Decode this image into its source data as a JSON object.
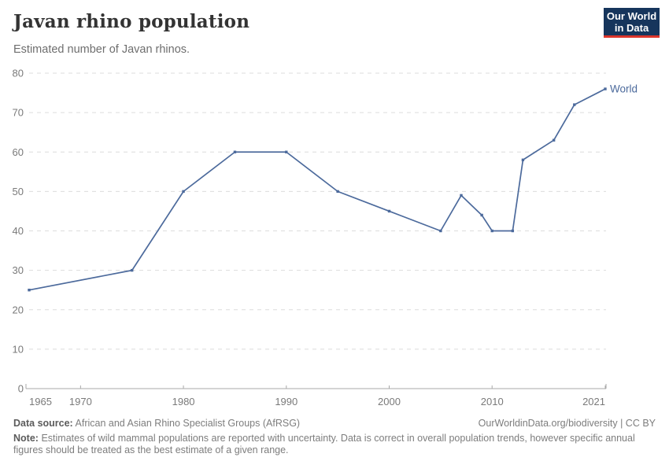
{
  "header": {
    "title": "Javan rhino population",
    "subtitle": "Estimated number of Javan rhinos.",
    "logo": {
      "line1": "Our World",
      "line2": "in Data"
    }
  },
  "chart_data": {
    "type": "line",
    "title": "Javan rhino population",
    "subtitle": "Estimated number of Javan rhinos.",
    "xlabel": "",
    "ylabel": "",
    "xlim": [
      1965,
      2021
    ],
    "ylim": [
      0,
      80
    ],
    "grid": "horizontal-dashed",
    "legend_position": "end-of-line",
    "y_ticks": [
      0,
      10,
      20,
      30,
      40,
      50,
      60,
      70,
      80
    ],
    "x_ticks": [
      {
        "year": 1965,
        "label": "1965",
        "tick": false,
        "anchor": "start"
      },
      {
        "year": 1970,
        "label": "1970",
        "tick": true,
        "anchor": "middle"
      },
      {
        "year": 1980,
        "label": "1980",
        "tick": true,
        "anchor": "middle"
      },
      {
        "year": 1990,
        "label": "1990",
        "tick": true,
        "anchor": "middle"
      },
      {
        "year": 2000,
        "label": "2000",
        "tick": true,
        "anchor": "middle"
      },
      {
        "year": 2010,
        "label": "2010",
        "tick": true,
        "anchor": "middle"
      },
      {
        "year": 2021,
        "label": "2021",
        "tick": true,
        "anchor": "end"
      }
    ],
    "series": [
      {
        "name": "World",
        "color": "#4c6a9c",
        "points": [
          {
            "year": 1965,
            "value": 25
          },
          {
            "year": 1975,
            "value": 30
          },
          {
            "year": 1980,
            "value": 50
          },
          {
            "year": 1985,
            "value": 60
          },
          {
            "year": 1990,
            "value": 60
          },
          {
            "year": 1995,
            "value": 50
          },
          {
            "year": 2000,
            "value": 45
          },
          {
            "year": 2005,
            "value": 40
          },
          {
            "year": 2007,
            "value": 49
          },
          {
            "year": 2009,
            "value": 44
          },
          {
            "year": 2010,
            "value": 40
          },
          {
            "year": 2012,
            "value": 40
          },
          {
            "year": 2013,
            "value": 58
          },
          {
            "year": 2016,
            "value": 63
          },
          {
            "year": 2018,
            "value": 72
          },
          {
            "year": 2021,
            "value": 76
          }
        ]
      }
    ]
  },
  "footer": {
    "source_label": "Data source:",
    "source_text": "African and Asian Rhino Specialist Groups (AfRSG)",
    "link": "OurWorldinData.org/biodiversity | CC BY",
    "note_label": "Note:",
    "note_text": "Estimates of wild mammal populations are reported with uncertainty. Data is correct in overall population trends, however specific annual figures should be treated as the best estimate of a given range."
  },
  "colors": {
    "accent": "#4c6a9c",
    "grid": "#dcdcdc",
    "axis": "#a9a9a9",
    "tick_label": "#7a7a7a",
    "logo_bg": "#16355c",
    "logo_red": "#dc352b"
  }
}
